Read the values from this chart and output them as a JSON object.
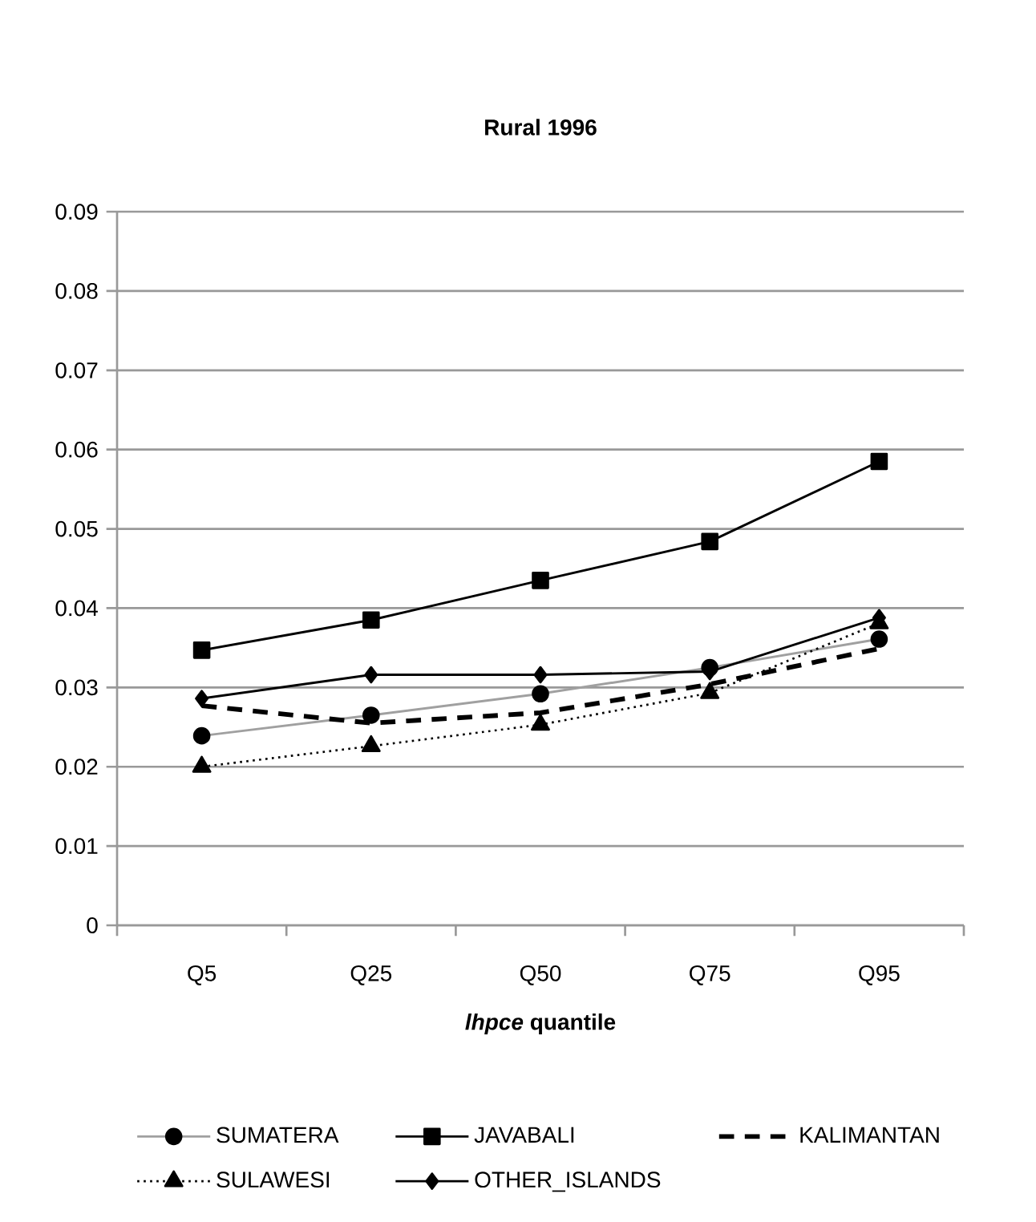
{
  "chart_data": {
    "type": "line",
    "title": "Rural 1996",
    "xlabel": "*lhpce* quantile",
    "categories": [
      "Q5",
      "Q25",
      "Q50",
      "Q75",
      "Q95"
    ],
    "series": [
      {
        "name": "SUMATERA",
        "color": "#a0a0a0",
        "marker": "circle",
        "line_style": "solid",
        "values": [
          0.0239,
          0.0265,
          0.0292,
          0.0325,
          0.0361
        ]
      },
      {
        "name": "JAVABALI",
        "color": "#000000",
        "marker": "square",
        "line_style": "solid",
        "values": [
          0.0347,
          0.0385,
          0.0435,
          0.0484,
          0.0585
        ]
      },
      {
        "name": "KALIMANTAN",
        "color": "#000000",
        "marker": "none",
        "line_style": "dashed",
        "values": [
          0.0277,
          0.0255,
          0.0268,
          0.0304,
          0.0349
        ]
      },
      {
        "name": "SULAWESI",
        "color": "#000000",
        "marker": "triangle",
        "line_style": "dotted",
        "values": [
          0.02,
          0.0226,
          0.0253,
          0.0293,
          0.0381
        ]
      },
      {
        "name": "OTHER_ISLANDS",
        "color": "#000000",
        "marker": "diamond",
        "line_style": "solid",
        "values": [
          0.0286,
          0.0316,
          0.0316,
          0.032,
          0.0388
        ]
      }
    ],
    "ylim": [
      0,
      0.09
    ],
    "yticks": [
      0,
      0.01,
      0.02,
      0.03,
      0.04,
      0.05,
      0.06,
      0.07,
      0.08,
      0.09
    ],
    "grid": "y",
    "legend": "bottom"
  }
}
